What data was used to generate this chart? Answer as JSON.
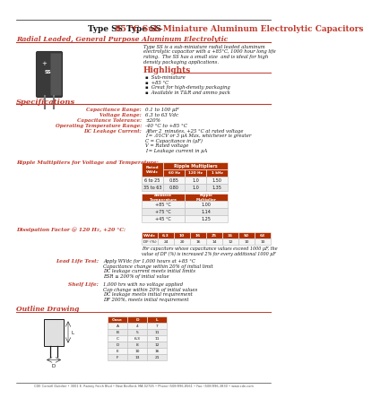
{
  "title_bold": "Type SS",
  "title_rest": "  85 °C Sub-Miniature Aluminum Electrolytic Capacitors",
  "subtitle": "Radial Leaded, General Purpose Aluminum Electrolytic",
  "desc_lines": [
    "Type SS is a sub-miniature radial leaded aluminum",
    "electrolytic capacitor with a +85°C, 1000 hour long life",
    "rating.  The SS has a small size  and is ideal for high",
    "density packaging applications."
  ],
  "highlights_title": "Highlights",
  "highlights": [
    "Sub-miniature",
    "+85 °C",
    "Great for high-density packaging",
    "Available in T&R and ammo pack"
  ],
  "specs_title": "Specifications",
  "spec_labels": [
    "Capacitance Range:",
    "Voltage Range:",
    "Capacitance Tolerance:",
    "Operating Temperature Range:",
    "DC Leakage Current:"
  ],
  "spec_values": [
    "0.1 to 100 μF",
    "6.3 to 63 Vdc",
    "±20%",
    "-40 °C to +85 °C",
    ""
  ],
  "dc_lines": [
    "After 2  minutes, +25 °C at rated voltage",
    "I = .01CV or 3 μA Max, whichever is greater",
    "C = Capacitance in (μF)",
    "V = Rated voltage",
    "I = Leakage current in μA"
  ],
  "ripple_title": "Ripple Multipliers for Voltage and Temperature:",
  "rt1_col0_hdr": "Rated\nWVdc",
  "rt1_rm_hdr": "Ripple Multipliers",
  "rt1_sub": [
    "60 Hz",
    "120 Hz",
    "1 kHz"
  ],
  "rt1_data": [
    [
      "6 to 25",
      "0.85",
      "1.0",
      "1.50"
    ],
    [
      "35 to 63",
      "0.80",
      "1.0",
      "1.35"
    ]
  ],
  "rt2_hdrs": [
    "Ambient\nTemperature",
    "Ripple\nMultiplier"
  ],
  "rt2_data": [
    [
      "+85 °C",
      "1.00"
    ],
    [
      "+75 °C",
      "1.14"
    ],
    [
      "+45 °C",
      "1.25"
    ]
  ],
  "dissipation_title": "Dissipation Factor @ 120 Hz, +20 °C:",
  "df_hdrs": [
    "WVdc",
    "6.3",
    "10",
    "16",
    "25",
    "35",
    "50",
    "63"
  ],
  "df_data": [
    "DF (%)",
    "24",
    "20",
    "16",
    "14",
    "12",
    "10",
    "10"
  ],
  "df_note_lines": [
    "For capacitors whose capacitance values exceed 1000 μF, the",
    "value of DF (%) is increased 2% for every additional 1000 μF"
  ],
  "ll_title": "Lead Life Test:",
  "ll_lines": [
    "Apply WVdc for 1,000 hours at +85 °C",
    "Capacitance change within 20% of initial limit",
    "DC leakage current meets initial limits",
    "ESR ≤ 200% of initial value"
  ],
  "sl_title": "Shelf Life:",
  "sl_lines": [
    "1,000 hrs with no voltage applied",
    "Cap change within 20% of initial values",
    "DC leakage meets initial requirement",
    "DF 200%, meets initial requirement"
  ],
  "outline_title": "Outline Drawing",
  "footer": "CDE Cornell Dubilier • 3001 E. Rainey Ferch Blvd • New Bedford, MA 02745 • Phone (508)996-8561 • Fax: (508)996-3830 • www.cde.com",
  "red": "#c0392b",
  "dark": "#1a1a1a",
  "hdr_bg": "#b03000",
  "row0": "#f5f5f5",
  "row1": "#e8e8e8"
}
